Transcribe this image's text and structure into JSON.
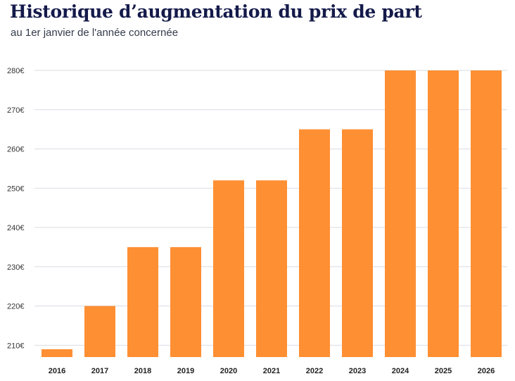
{
  "chart_data": {
    "type": "bar",
    "title": "Historique d’augmentation du prix de part",
    "subtitle": "au 1er janvier de l'année concernée",
    "categories": [
      "2016",
      "2017",
      "2018",
      "2019",
      "2020",
      "2021",
      "2022",
      "2023",
      "2024",
      "2025",
      "2026"
    ],
    "values": [
      209,
      220,
      235,
      235,
      252,
      252,
      265,
      265,
      280,
      280,
      280
    ],
    "y_ticks": [
      "210€",
      "220€",
      "230€",
      "240€",
      "250€",
      "260€",
      "270€",
      "280€"
    ],
    "xlabel": "",
    "ylabel": "",
    "ylim": [
      207,
      280
    ],
    "grid": true,
    "legend": "none",
    "colors": {
      "bar": "#ff8f33",
      "grid": "#d8dbe3",
      "title": "#141a4a"
    }
  }
}
